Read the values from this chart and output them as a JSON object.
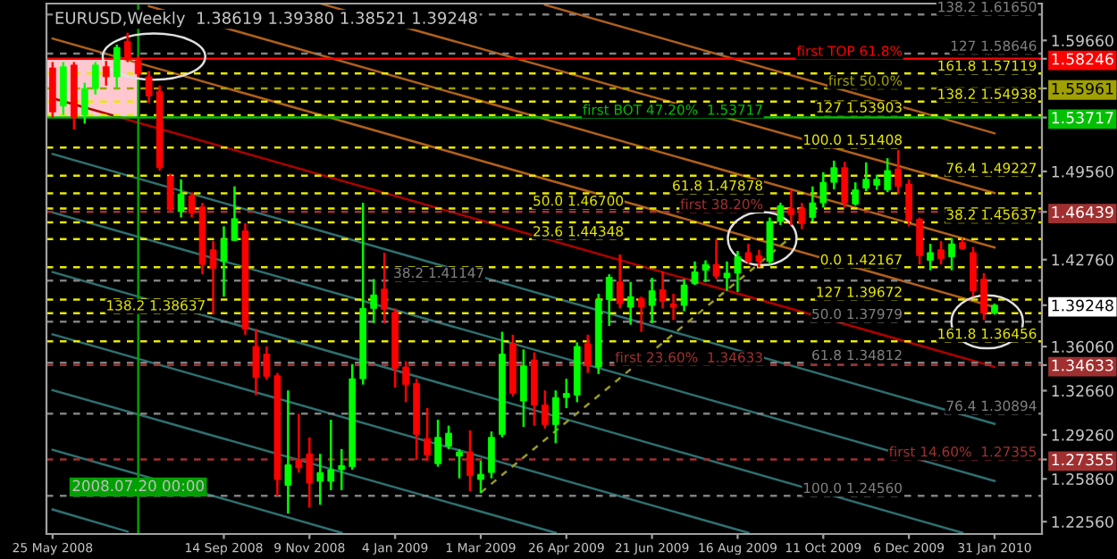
{
  "chart_data": {
    "type": "candlestick",
    "title": "EURUSD,Weekly  1.38619 1.39380 1.38521 1.39248",
    "x": [
      "2008-05-25",
      "2008-06-01",
      "2008-06-08",
      "2008-06-15",
      "2008-06-22",
      "2008-06-29",
      "2008-07-06",
      "2008-07-13",
      "2008-07-20",
      "2008-07-27",
      "2008-08-03",
      "2008-08-10",
      "2008-08-17",
      "2008-08-24",
      "2008-08-31",
      "2008-09-07",
      "2008-09-14",
      "2008-09-21",
      "2008-09-28",
      "2008-10-05",
      "2008-10-12",
      "2008-10-19",
      "2008-10-26",
      "2008-11-02",
      "2008-11-09",
      "2008-11-16",
      "2008-11-23",
      "2008-11-30",
      "2008-12-07",
      "2008-12-14",
      "2008-12-21",
      "2008-12-28",
      "2009-01-04",
      "2009-01-11",
      "2009-01-18",
      "2009-01-25",
      "2009-02-01",
      "2009-02-08",
      "2009-02-15",
      "2009-02-22",
      "2009-03-01",
      "2009-03-08",
      "2009-03-15",
      "2009-03-22",
      "2009-03-29",
      "2009-04-05",
      "2009-04-12",
      "2009-04-19",
      "2009-04-26",
      "2009-05-03",
      "2009-05-10",
      "2009-05-17",
      "2009-05-24",
      "2009-05-31",
      "2009-06-07",
      "2009-06-14",
      "2009-06-21",
      "2009-06-28",
      "2009-07-05",
      "2009-07-12",
      "2009-07-19",
      "2009-07-26",
      "2009-08-02",
      "2009-08-09",
      "2009-08-16",
      "2009-08-23",
      "2009-08-30",
      "2009-09-06",
      "2009-09-13",
      "2009-09-20",
      "2009-09-27",
      "2009-10-04",
      "2009-10-11",
      "2009-10-18",
      "2009-10-25",
      "2009-11-01",
      "2009-11-08",
      "2009-11-15",
      "2009-11-22",
      "2009-11-29",
      "2009-12-06",
      "2009-12-13",
      "2009-12-20",
      "2009-12-27",
      "2010-01-03",
      "2010-01-10",
      "2010-01-17",
      "2010-01-24",
      "2010-01-31"
    ],
    "ohlc": [
      [
        1.5754,
        1.5799,
        1.537,
        1.5415
      ],
      [
        1.546,
        1.5799,
        1.5392,
        1.5763
      ],
      [
        1.5776,
        1.5799,
        1.5279,
        1.5369
      ],
      [
        1.5392,
        1.564,
        1.5324,
        1.5595
      ],
      [
        1.5595,
        1.5799,
        1.555,
        1.5776
      ],
      [
        1.5763,
        1.5808,
        1.5618,
        1.5686
      ],
      [
        1.5686,
        1.5934,
        1.5595,
        1.5912
      ],
      [
        1.5957,
        1.6025,
        1.5799,
        1.5821
      ],
      [
        1.5812,
        1.5844,
        1.5686,
        1.5708
      ],
      [
        1.5686,
        1.5731,
        1.5482,
        1.5537
      ],
      [
        1.5573,
        1.5618,
        1.4963,
        1.4985
      ],
      [
        1.4918,
        1.494,
        1.4646,
        1.466
      ],
      [
        1.4646,
        1.4895,
        1.4601,
        1.4782
      ],
      [
        1.4768,
        1.4795,
        1.4601,
        1.4637
      ],
      [
        1.4682,
        1.4714,
        1.4163,
        1.4239
      ],
      [
        1.4352,
        1.442,
        1.3855,
        1.4208
      ],
      [
        1.4262,
        1.4533,
        1.3991,
        1.4434
      ],
      [
        1.4424,
        1.4841,
        1.442,
        1.4592
      ],
      [
        1.4497,
        1.4556,
        1.3697,
        1.3742
      ],
      [
        1.3607,
        1.3742,
        1.3231,
        1.3367
      ],
      [
        1.3548,
        1.3607,
        1.3349,
        1.3376
      ],
      [
        1.3381,
        1.3403,
        1.2454,
        1.2581
      ],
      [
        1.2536,
        1.3268,
        1.2318,
        1.2694
      ],
      [
        1.2734,
        1.3087,
        1.2635,
        1.2671
      ],
      [
        1.2779,
        1.2906,
        1.2364,
        1.2554
      ],
      [
        1.2567,
        1.2779,
        1.2386,
        1.2635
      ],
      [
        1.2567,
        1.3042,
        1.2499,
        1.2657
      ],
      [
        1.2657,
        1.2816,
        1.2499,
        1.2689
      ],
      [
        1.268,
        1.3471,
        1.2657,
        1.3358
      ],
      [
        1.3358,
        1.4714,
        1.3313,
        1.39
      ],
      [
        1.39,
        1.4126,
        1.3787,
        1.4004
      ],
      [
        1.4049,
        1.433,
        1.3787,
        1.3891
      ],
      [
        1.3869,
        1.39,
        1.329,
        1.3439
      ],
      [
        1.3448,
        1.3493,
        1.3177,
        1.3313
      ],
      [
        1.3322,
        1.3358,
        1.2734,
        1.2929
      ],
      [
        1.2897,
        1.3132,
        1.2725,
        1.2771
      ],
      [
        1.2703,
        1.3042,
        1.268,
        1.2906
      ],
      [
        1.2838,
        1.2996,
        1.2816,
        1.2938
      ],
      [
        1.2761,
        1.2816,
        1.259,
        1.2793
      ],
      [
        1.2793,
        1.296,
        1.249,
        1.2612
      ],
      [
        1.2581,
        1.2725,
        1.2477,
        1.2621
      ],
      [
        1.2635,
        1.2951,
        1.259,
        1.2906
      ],
      [
        1.2929,
        1.372,
        1.2906,
        1.3548
      ],
      [
        1.3629,
        1.3697,
        1.3222,
        1.3245
      ],
      [
        1.3186,
        1.3584,
        1.2987,
        1.3457
      ],
      [
        1.3503,
        1.3561,
        1.2996,
        1.3155
      ],
      [
        1.3155,
        1.3268,
        1.2974,
        1.3005
      ],
      [
        1.3005,
        1.3268,
        1.2861,
        1.3213
      ],
      [
        1.3213,
        1.3358,
        1.3132,
        1.3245
      ],
      [
        1.3231,
        1.3638,
        1.3177,
        1.3607
      ],
      [
        1.3629,
        1.3697,
        1.3403,
        1.3457
      ],
      [
        1.3448,
        1.4013,
        1.3394,
        1.3968
      ],
      [
        1.3968,
        1.4163,
        1.3765,
        1.414
      ],
      [
        1.4104,
        1.4316,
        1.39,
        1.3936
      ],
      [
        1.3909,
        1.4104,
        1.3774,
        1.3991
      ],
      [
        1.3977,
        1.3991,
        1.372,
        1.3909
      ],
      [
        1.3923,
        1.4136,
        1.3787,
        1.4036
      ],
      [
        1.4045,
        1.4185,
        1.39,
        1.3955
      ],
      [
        1.3936,
        1.4013,
        1.381,
        1.3909
      ],
      [
        1.3923,
        1.4126,
        1.3878,
        1.4081
      ],
      [
        1.409,
        1.4262,
        1.4081,
        1.4181
      ],
      [
        1.4194,
        1.4271,
        1.4104,
        1.4239
      ],
      [
        1.4239,
        1.4434,
        1.4126,
        1.4149
      ],
      [
        1.4136,
        1.4262,
        1.4036,
        1.4172
      ],
      [
        1.4172,
        1.4343,
        1.4027,
        1.4298
      ],
      [
        1.433,
        1.4398,
        1.4239,
        1.4262
      ],
      [
        1.4307,
        1.4352,
        1.4217,
        1.4262
      ],
      [
        1.4262,
        1.4601,
        1.4239,
        1.457
      ],
      [
        1.457,
        1.4714,
        1.4543,
        1.4692
      ],
      [
        1.4669,
        1.4814,
        1.4543,
        1.4624
      ],
      [
        1.4669,
        1.4714,
        1.4511,
        1.4556
      ],
      [
        1.4601,
        1.4841,
        1.457,
        1.4714
      ],
      [
        1.4714,
        1.4949,
        1.4678,
        1.4872
      ],
      [
        1.4872,
        1.5039,
        1.4818,
        1.4985
      ],
      [
        1.4985,
        1.503,
        1.4678,
        1.4714
      ],
      [
        1.4705,
        1.4872,
        1.4692,
        1.4814
      ],
      [
        1.4827,
        1.5026,
        1.4804,
        1.4895
      ],
      [
        1.485,
        1.4931,
        1.4814,
        1.4895
      ],
      [
        1.4814,
        1.5058,
        1.4796,
        1.4963
      ],
      [
        1.4976,
        1.512,
        1.4782,
        1.4841
      ],
      [
        1.4859,
        1.4895,
        1.4533,
        1.4578
      ],
      [
        1.4588,
        1.4601,
        1.4239,
        1.4307
      ],
      [
        1.4271,
        1.4398,
        1.4194,
        1.433
      ],
      [
        1.4352,
        1.442,
        1.4239,
        1.4284
      ],
      [
        1.4298,
        1.4443,
        1.4194,
        1.4397
      ],
      [
        1.4407,
        1.4443,
        1.4352,
        1.4361
      ],
      [
        1.433,
        1.4375,
        1.3991,
        1.4036
      ],
      [
        1.4126,
        1.4172,
        1.381,
        1.3862
      ],
      [
        1.38619,
        1.3938,
        1.38521,
        1.39248
      ]
    ],
    "colors": [
      "#ff0000",
      "#00ff00",
      "#ff0000",
      "#00ff00",
      "#00ff00",
      "#ff0000",
      "#00ff00",
      "#ff0000",
      "#ff0000",
      "#ff0000",
      "#ff0000",
      "#ff0000",
      "#00ff00",
      "#ff0000",
      "#ff0000",
      "#ff0000",
      "#00ff00",
      "#00ff00",
      "#ff0000",
      "#ff0000",
      "#ff0000",
      "#ff0000",
      "#00ff00",
      "#ff0000",
      "#ff0000",
      "#00ff00",
      "#00ff00",
      "#00ff00",
      "#00ff00",
      "#00ff00",
      "#00ff00",
      "#ff0000",
      "#ff0000",
      "#ff0000",
      "#ff0000",
      "#ff0000",
      "#00ff00",
      "#00ff00",
      "#00ff00",
      "#ff0000",
      "#00ff00",
      "#00ff00",
      "#00ff00",
      "#ff0000",
      "#00ff00",
      "#ff0000",
      "#ff0000",
      "#00ff00",
      "#00ff00",
      "#00ff00",
      "#ff0000",
      "#00ff00",
      "#00ff00",
      "#ff0000",
      "#00ff00",
      "#ff0000",
      "#00ff00",
      "#ff0000",
      "#ff0000",
      "#00ff00",
      "#00ff00",
      "#00ff00",
      "#ff0000",
      "#00ff00",
      "#00ff00",
      "#ff0000",
      "#ff0000",
      "#00ff00",
      "#00ff00",
      "#ff0000",
      "#ff0000",
      "#00ff00",
      "#00ff00",
      "#00ff00",
      "#ff0000",
      "#00ff00",
      "#00ff00",
      "#00ff00",
      "#00ff00",
      "#ff0000",
      "#ff0000",
      "#ff0000",
      "#00ff00",
      "#ff0000",
      "#00ff00",
      "#ff0000",
      "#ff0000",
      "#ff0000",
      "#00ff00"
    ],
    "series": [
      {
        "type": "line",
        "x": [
          "2009-04-12",
          "2010-01-31"
        ],
        "values": [
          1.624,
          1.525
        ],
        "color": "#b0601a",
        "line_style": "solid"
      },
      {
        "type": "line",
        "x": [
          "2008-11-16",
          "2010-01-31"
        ],
        "values": [
          1.625,
          1.479
        ],
        "color": "#b0601a",
        "line_style": "solid"
      },
      {
        "type": "line",
        "x": [
          "2008-07-27",
          "2010-01-31"
        ],
        "values": [
          1.623,
          1.437
        ],
        "color": "#b0601a",
        "line_style": "solid"
      },
      {
        "type": "line",
        "x": [
          "2008-05-25",
          "2010-01-31"
        ],
        "values": [
          1.598,
          1.391
        ],
        "color": "#b0601a",
        "line_style": "solid"
      },
      {
        "type": "line",
        "x": [
          "2008-05-25",
          "2010-01-31"
        ],
        "values": [
          1.552,
          1.345
        ],
        "color": "#b00000",
        "line_style": "solid"
      },
      {
        "type": "line",
        "x": [
          "2008-05-25",
          "2010-01-31"
        ],
        "values": [
          1.509,
          1.301
        ],
        "color": "#2f6f6f",
        "line_style": "solid"
      },
      {
        "type": "line",
        "x": [
          "2008-05-25",
          "2010-01-31"
        ],
        "values": [
          1.464,
          1.257
        ],
        "color": "#2f6f6f",
        "line_style": "solid"
      },
      {
        "type": "line",
        "x": [
          "2008-05-25",
          "2010-01-10"
        ],
        "values": [
          1.418,
          1.217
        ],
        "color": "#2f6f6f",
        "line_style": "solid"
      },
      {
        "type": "line",
        "x": [
          "2008-05-25",
          "2009-08-23"
        ],
        "values": [
          1.37,
          1.217
        ],
        "color": "#2f6f6f",
        "line_style": "solid"
      },
      {
        "type": "line",
        "x": [
          "2008-05-25",
          "2009-04-19"
        ],
        "values": [
          1.327,
          1.217
        ],
        "color": "#2f6f6f",
        "line_style": "solid"
      },
      {
        "type": "line",
        "x": [
          "2008-05-25",
          "2008-11-30"
        ],
        "values": [
          1.281,
          1.217
        ],
        "color": "#2f6f6f",
        "line_style": "solid"
      },
      {
        "type": "line",
        "x": [
          "2008-05-25",
          "2008-07-13"
        ],
        "values": [
          1.235,
          1.218
        ],
        "color": "#2f6f6f",
        "line_style": "solid"
      },
      {
        "type": "line",
        "x": [
          "2009-03-01",
          "2009-09-20"
        ],
        "values": [
          1.248,
          1.445
        ],
        "color": "#9a9a20",
        "line_style": "dashed"
      }
    ],
    "ref_lines": [
      {
        "axis": "y",
        "value": 1.6165,
        "label": "138.2 1.61650",
        "color": "#808080",
        "line_style": "dashed"
      },
      {
        "axis": "y",
        "value": 1.58646,
        "label": "127 1.58646",
        "color": "#808080",
        "line_style": "dashed"
      },
      {
        "axis": "y",
        "value": 1.58246,
        "label": "first TOP 61.8%",
        "color": "#ff0000",
        "line_style": "solid"
      },
      {
        "axis": "y",
        "value": 1.57119,
        "label": "161.8 1.57119",
        "color": "#e8e800",
        "line_style": "dashed"
      },
      {
        "axis": "y",
        "value": 1.55961,
        "label": "first 50.0%",
        "color": "#a0a000",
        "line_style": "dashed"
      },
      {
        "axis": "y",
        "value": 1.54938,
        "label": "138.2 1.54938",
        "color": "#e8e800",
        "line_style": "dashed"
      },
      {
        "axis": "y",
        "value": 1.53903,
        "label": "127 1.53903",
        "color": "#e8e800",
        "line_style": "dashed"
      },
      {
        "axis": "y",
        "value": 1.53717,
        "label": "first BOT 47.20%  1.53717",
        "color": "#00c000",
        "line_style": "solid"
      },
      {
        "axis": "y",
        "value": 1.51408,
        "label": "100.0 1.51408",
        "color": "#e8e800",
        "line_style": "dashed"
      },
      {
        "axis": "y",
        "value": 1.49227,
        "label": "76.4 1.49227",
        "color": "#e8e800",
        "line_style": "dashed"
      },
      {
        "axis": "y",
        "value": 1.47878,
        "label": "61.8 1.47878",
        "color": "#e8e800",
        "line_style": "dashed"
      },
      {
        "axis": "y",
        "value": 1.467,
        "label": "50.0 1.46700",
        "color": "#e8e800",
        "line_style": "dashed"
      },
      {
        "axis": "y",
        "value": 1.46439,
        "label": "first 38.20%",
        "color": "#a03030",
        "line_style": "dashed"
      },
      {
        "axis": "y",
        "value": 1.45637,
        "label": "38.2 1.45637",
        "color": "#e8e800",
        "line_style": "dashed"
      },
      {
        "axis": "y",
        "value": 1.44348,
        "label": "23.6 1.44348",
        "color": "#e8e800",
        "line_style": "dashed"
      },
      {
        "axis": "y",
        "value": 1.42167,
        "label": "0.0 1.42167",
        "color": "#e8e800",
        "line_style": "dashed"
      },
      {
        "axis": "y",
        "value": 1.41147,
        "label": "38.2 1.41147",
        "color": "#808080",
        "line_style": "dashed"
      },
      {
        "axis": "y",
        "value": 1.39672,
        "label": "127 1.39672",
        "color": "#e8e800",
        "line_style": "dashed"
      },
      {
        "axis": "y",
        "value": 1.38637,
        "label": "138.2 1.38637",
        "color": "#e8e800",
        "line_style": "dashed"
      },
      {
        "axis": "y",
        "value": 1.37979,
        "label": "50.0 1.37979",
        "color": "#808080",
        "line_style": "dashed"
      },
      {
        "axis": "y",
        "value": 1.36456,
        "label": "161.8 1.36456",
        "color": "#e8e800",
        "line_style": "dashed"
      },
      {
        "axis": "y",
        "value": 1.34812,
        "label": "61.8 1.34812",
        "color": "#808080",
        "line_style": "dashed"
      },
      {
        "axis": "y",
        "value": 1.34633,
        "label": "first 23.60%  1.34633",
        "color": "#a03030",
        "line_style": "dashed"
      },
      {
        "axis": "y",
        "value": 1.30894,
        "label": "76.4 1.30894",
        "color": "#808080",
        "line_style": "dashed"
      },
      {
        "axis": "y",
        "value": 1.27355,
        "label": "first 14.60%  1.27355",
        "color": "#a03030",
        "line_style": "dashed"
      },
      {
        "axis": "y",
        "value": 1.2456,
        "label": "100.0 1.24560",
        "color": "#808080",
        "line_style": "dashed"
      },
      {
        "axis": "x",
        "value": "2008-07-20",
        "label": "2008.07.20 00:00",
        "color": "#00a000",
        "line_style": "solid"
      }
    ],
    "bands": [
      {
        "axis": "y",
        "from": 1.53717,
        "to": 1.58246,
        "color": "#ffc8d0"
      }
    ],
    "xlim": [
      "2008-05-21",
      "2010-03-03"
    ],
    "ylim": [
      1.2161,
      1.625
    ],
    "xticks": [
      {
        "value": "2008-05-25",
        "label": "25 May 2008"
      },
      {
        "value": "2008-09-14",
        "label": "14 Sep 2008"
      },
      {
        "value": "2008-11-09",
        "label": "9 Nov 2008"
      },
      {
        "value": "2009-01-04",
        "label": "4 Jan 2009"
      },
      {
        "value": "2009-03-01",
        "label": "1 Mar 2009"
      },
      {
        "value": "2009-04-26",
        "label": "26 Apr 2009"
      },
      {
        "value": "2009-06-21",
        "label": "21 Jun 2009"
      },
      {
        "value": "2009-08-16",
        "label": "16 Aug 2009"
      },
      {
        "value": "2009-10-11",
        "label": "11 Oct 2009"
      },
      {
        "value": "2009-12-06",
        "label": "6 Dec 2009"
      },
      {
        "value": "2010-01-31",
        "label": "31 Jan 2010"
      }
    ],
    "yticks": [
      {
        "value": 1.5966,
        "label": "1.59660"
      },
      {
        "value": 1.58246,
        "label": "1.58246"
      },
      {
        "value": 1.55961,
        "label": "1.55961"
      },
      {
        "value": 1.53717,
        "label": "1.53717"
      },
      {
        "value": 1.4956,
        "label": "1.49560"
      },
      {
        "value": 1.46439,
        "label": "1.46439"
      },
      {
        "value": 1.4276,
        "label": "1.42760"
      },
      {
        "value": 1.39248,
        "label": "1.39248"
      },
      {
        "value": 1.3606,
        "label": "1.36060"
      },
      {
        "value": 1.34633,
        "label": "1.34633"
      },
      {
        "value": 1.3266,
        "label": "1.32660"
      },
      {
        "value": 1.2926,
        "label": "1.29260"
      },
      {
        "value": 1.27355,
        "label": "1.27355"
      },
      {
        "value": 1.2586,
        "label": "1.25860"
      },
      {
        "value": 1.2256,
        "label": "1.22560"
      }
    ],
    "grid": false,
    "legend": false
  }
}
